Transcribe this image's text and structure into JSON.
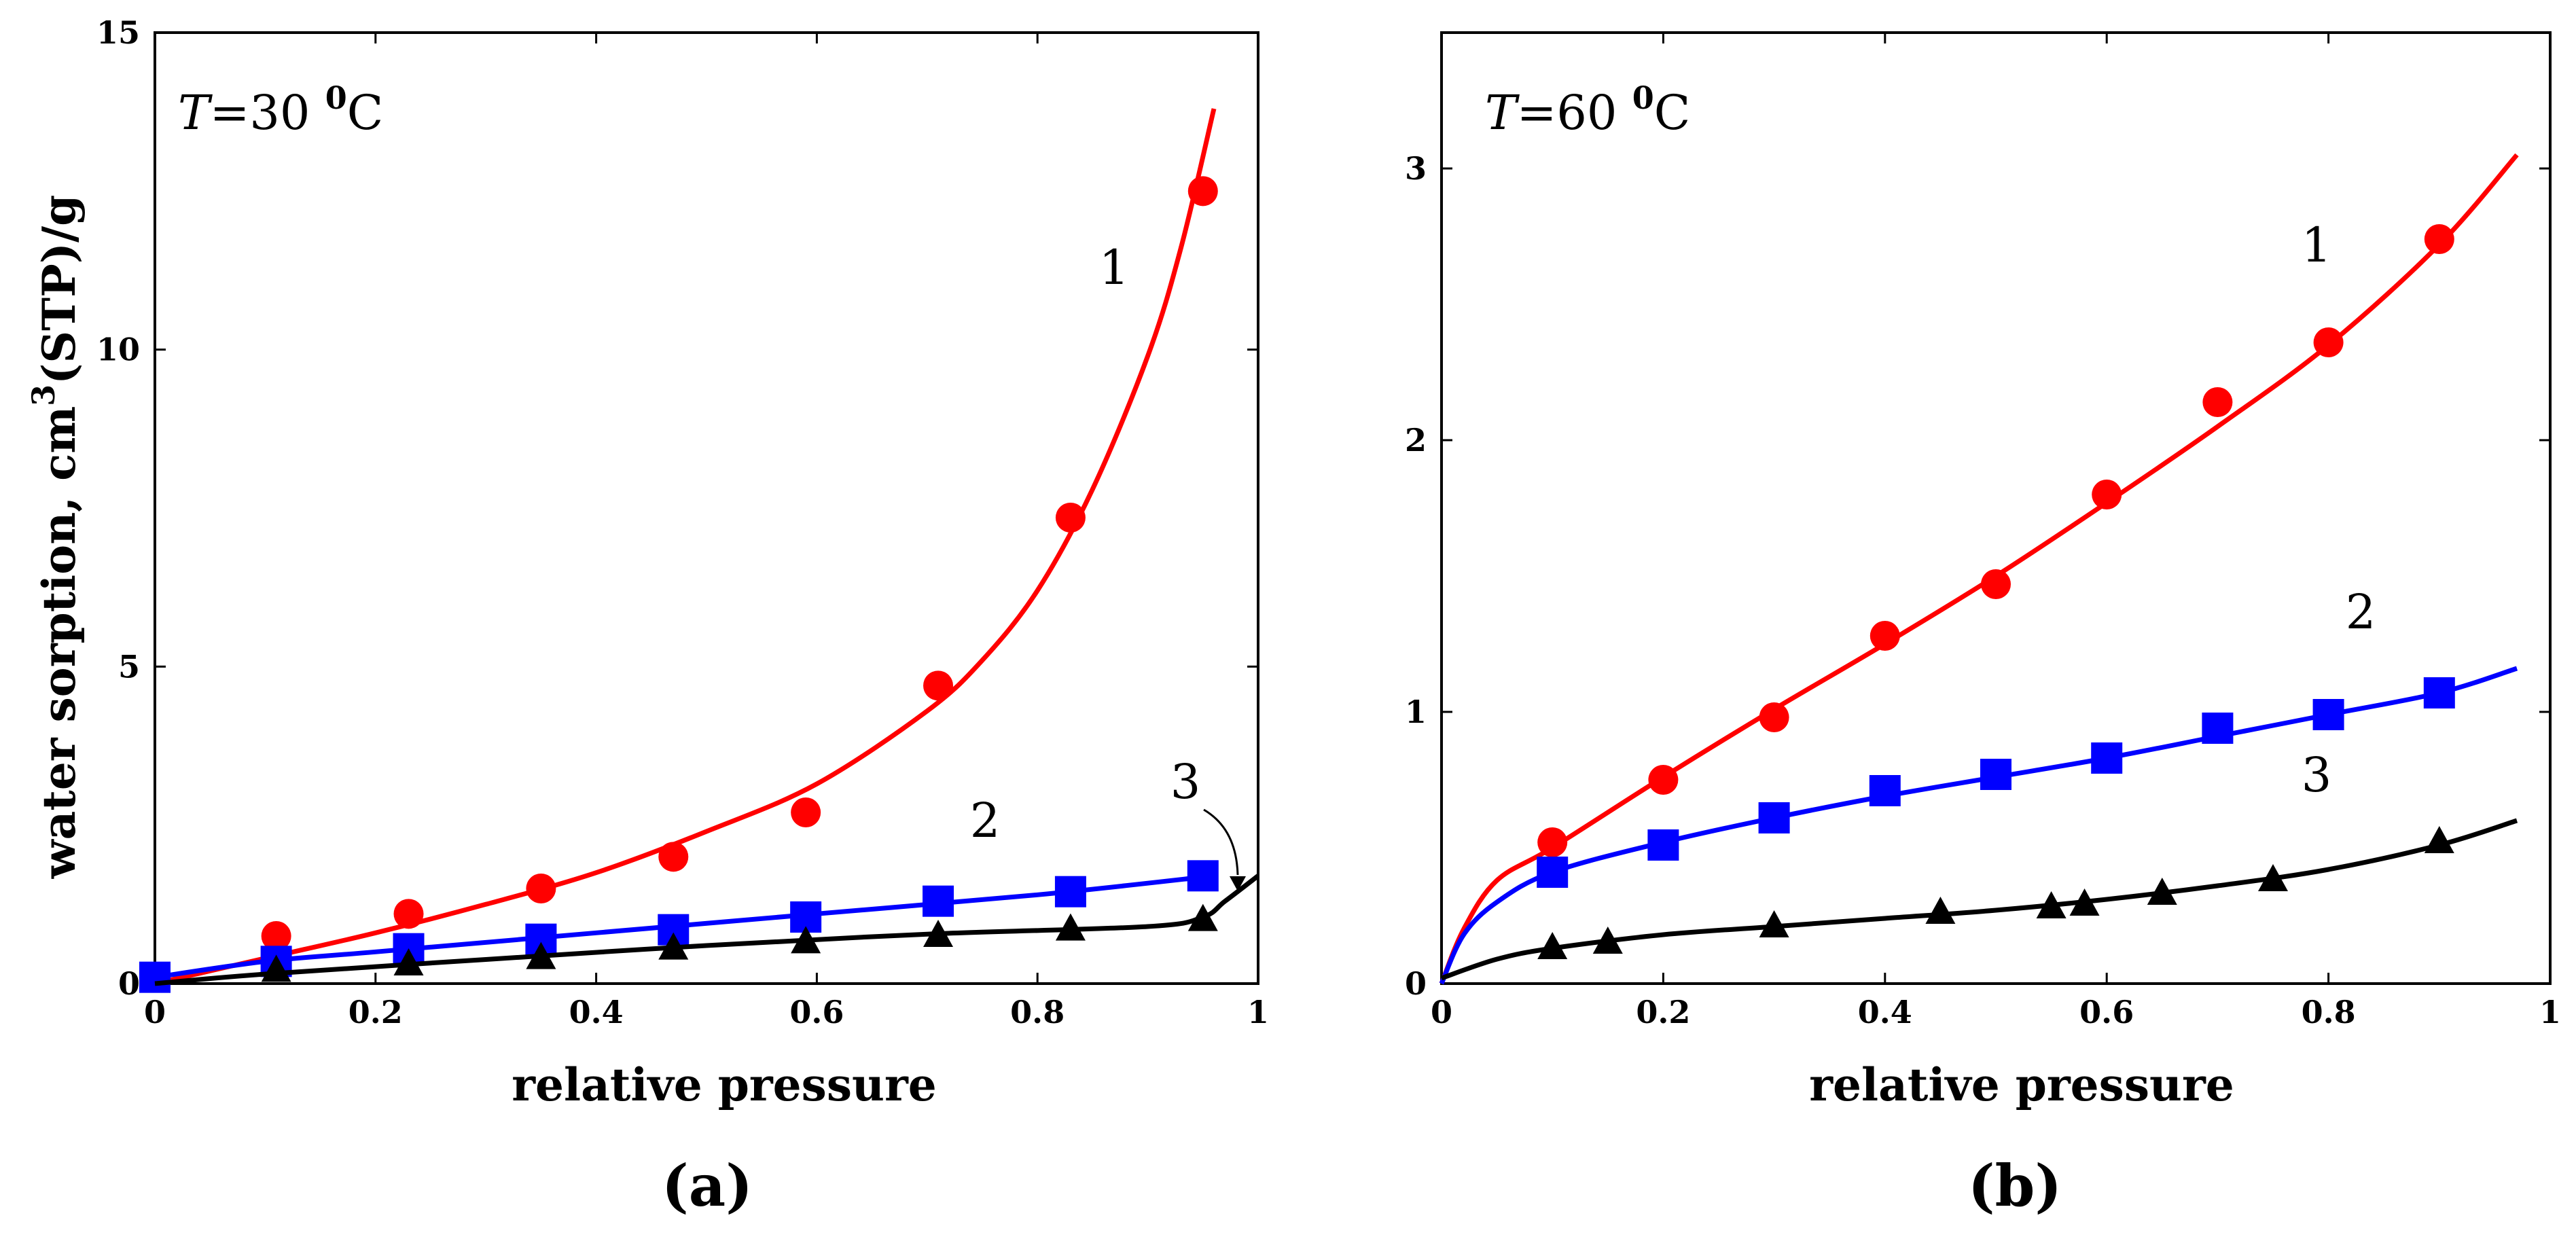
{
  "chart_data": [
    {
      "type": "line",
      "panel_label": "(a)",
      "annotation": {
        "T": "T",
        "equals": "=30 ",
        "sup": "0",
        "unit": "C"
      },
      "xlabel": "relative pressure",
      "ylabel": {
        "pre": "water sorption, cm",
        "sup": "3",
        "post": "(STP)/g"
      },
      "xlim": [
        0,
        1
      ],
      "ylim": [
        0,
        15
      ],
      "xticks": [
        "0",
        "0.2",
        "0.4",
        "0.6",
        "0.8",
        "1"
      ],
      "yticks": [
        "0",
        "5",
        "10",
        "15"
      ],
      "series": [
        {
          "name": "1",
          "color": "#ff0000",
          "marker": "circle",
          "points": [
            [
              0.11,
              0.75
            ],
            [
              0.23,
              1.1
            ],
            [
              0.35,
              1.5
            ],
            [
              0.47,
              2.0
            ],
            [
              0.59,
              2.7
            ],
            [
              0.71,
              4.7
            ],
            [
              0.83,
              7.35
            ],
            [
              0.95,
              12.5
            ]
          ],
          "curve": [
            [
              0,
              0
            ],
            [
              0.1,
              0.4
            ],
            [
              0.2,
              0.8
            ],
            [
              0.3,
              1.25
            ],
            [
              0.4,
              1.75
            ],
            [
              0.5,
              2.4
            ],
            [
              0.6,
              3.15
            ],
            [
              0.7,
              4.3
            ],
            [
              0.75,
              5.1
            ],
            [
              0.8,
              6.2
            ],
            [
              0.85,
              7.8
            ],
            [
              0.9,
              9.9
            ],
            [
              0.93,
              11.6
            ],
            [
              0.96,
              13.8
            ]
          ]
        },
        {
          "name": "2",
          "color": "#0000ff",
          "marker": "square",
          "points": [
            [
              0,
              0.1
            ],
            [
              0.11,
              0.35
            ],
            [
              0.23,
              0.55
            ],
            [
              0.35,
              0.7
            ],
            [
              0.47,
              0.85
            ],
            [
              0.59,
              1.05
            ],
            [
              0.71,
              1.3
            ],
            [
              0.83,
              1.45
            ],
            [
              0.95,
              1.7
            ]
          ],
          "curve": [
            [
              0,
              0.1
            ],
            [
              0.1,
              0.35
            ],
            [
              0.2,
              0.5
            ],
            [
              0.4,
              0.8
            ],
            [
              0.6,
              1.1
            ],
            [
              0.8,
              1.4
            ],
            [
              0.96,
              1.7
            ]
          ]
        },
        {
          "name": "3",
          "color": "#000000",
          "marker": "triangle",
          "points": [
            [
              0.11,
              0.2
            ],
            [
              0.23,
              0.3
            ],
            [
              0.35,
              0.4
            ],
            [
              0.47,
              0.55
            ],
            [
              0.59,
              0.65
            ],
            [
              0.71,
              0.75
            ],
            [
              0.83,
              0.85
            ],
            [
              0.95,
              1.0
            ]
          ],
          "curve": [
            [
              0,
              0
            ],
            [
              0.1,
              0.15
            ],
            [
              0.3,
              0.38
            ],
            [
              0.5,
              0.6
            ],
            [
              0.7,
              0.78
            ],
            [
              0.9,
              0.9
            ],
            [
              0.95,
              1.05
            ],
            [
              0.97,
              1.3
            ],
            [
              1.0,
              1.7
            ]
          ]
        }
      ]
    },
    {
      "type": "line",
      "panel_label": "(b)",
      "annotation": {
        "T": "T",
        "equals": "=60 ",
        "sup": "0",
        "unit": "C"
      },
      "xlabel": "relative pressure",
      "xlim": [
        0,
        1
      ],
      "ylim": [
        0,
        3.5
      ],
      "xticks": [
        "0",
        "0.2",
        "0.4",
        "0.6",
        "0.8",
        "1"
      ],
      "yticks": [
        "0",
        "1",
        "2",
        "3"
      ],
      "series": [
        {
          "name": "1",
          "color": "#ff0000",
          "marker": "circle",
          "points": [
            [
              0.1,
              0.52
            ],
            [
              0.2,
              0.75
            ],
            [
              0.3,
              0.98
            ],
            [
              0.4,
              1.28
            ],
            [
              0.5,
              1.47
            ],
            [
              0.6,
              1.8
            ],
            [
              0.7,
              2.14
            ],
            [
              0.8,
              2.36
            ],
            [
              0.9,
              2.74
            ]
          ],
          "curve": [
            [
              0,
              0
            ],
            [
              0.02,
              0.2
            ],
            [
              0.05,
              0.38
            ],
            [
              0.1,
              0.5
            ],
            [
              0.2,
              0.76
            ],
            [
              0.3,
              1.01
            ],
            [
              0.4,
              1.25
            ],
            [
              0.5,
              1.5
            ],
            [
              0.6,
              1.77
            ],
            [
              0.7,
              2.05
            ],
            [
              0.8,
              2.35
            ],
            [
              0.9,
              2.72
            ],
            [
              0.97,
              3.05
            ]
          ]
        },
        {
          "name": "2",
          "color": "#0000ff",
          "marker": "square",
          "points": [
            [
              0.1,
              0.41
            ],
            [
              0.2,
              0.51
            ],
            [
              0.3,
              0.61
            ],
            [
              0.4,
              0.71
            ],
            [
              0.5,
              0.77
            ],
            [
              0.6,
              0.83
            ],
            [
              0.7,
              0.94
            ],
            [
              0.8,
              0.99
            ],
            [
              0.9,
              1.07
            ]
          ],
          "curve": [
            [
              0,
              0
            ],
            [
              0.02,
              0.18
            ],
            [
              0.05,
              0.3
            ],
            [
              0.1,
              0.41
            ],
            [
              0.2,
              0.52
            ],
            [
              0.3,
              0.61
            ],
            [
              0.4,
              0.69
            ],
            [
              0.5,
              0.76
            ],
            [
              0.6,
              0.83
            ],
            [
              0.7,
              0.91
            ],
            [
              0.8,
              0.99
            ],
            [
              0.9,
              1.07
            ],
            [
              0.97,
              1.16
            ]
          ]
        },
        {
          "name": "3",
          "color": "#000000",
          "marker": "triangle",
          "points": [
            [
              0.1,
              0.13
            ],
            [
              0.15,
              0.15
            ],
            [
              0.3,
              0.21
            ],
            [
              0.45,
              0.26
            ],
            [
              0.55,
              0.28
            ],
            [
              0.58,
              0.29
            ],
            [
              0.65,
              0.33
            ],
            [
              0.75,
              0.38
            ],
            [
              0.9,
              0.52
            ]
          ],
          "curve": [
            [
              0,
              0.02
            ],
            [
              0.05,
              0.09
            ],
            [
              0.1,
              0.13
            ],
            [
              0.2,
              0.18
            ],
            [
              0.3,
              0.21
            ],
            [
              0.4,
              0.24
            ],
            [
              0.5,
              0.27
            ],
            [
              0.6,
              0.31
            ],
            [
              0.7,
              0.36
            ],
            [
              0.8,
              0.42
            ],
            [
              0.9,
              0.51
            ],
            [
              0.97,
              0.6
            ]
          ]
        }
      ]
    }
  ]
}
